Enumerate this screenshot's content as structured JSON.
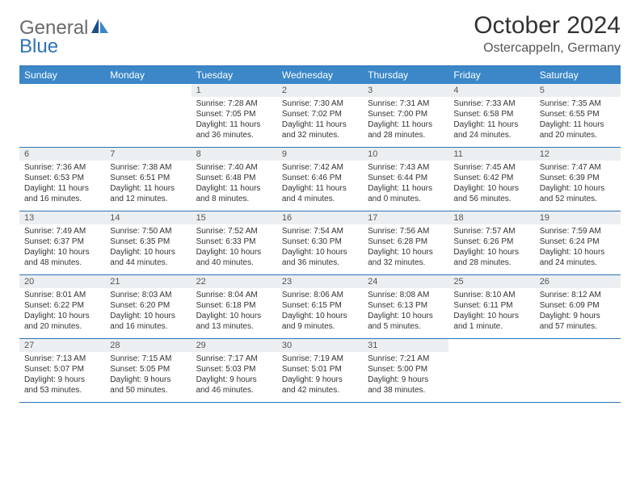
{
  "brand": {
    "part1": "General",
    "part2": "Blue"
  },
  "title": "October 2024",
  "location": "Ostercappeln, Germany",
  "colors": {
    "header_bg": "#3b87c8",
    "border": "#2f74b5",
    "numbar_bg": "#eceff1",
    "text": "#333333"
  },
  "day_names": [
    "Sunday",
    "Monday",
    "Tuesday",
    "Wednesday",
    "Thursday",
    "Friday",
    "Saturday"
  ],
  "weeks": [
    [
      {
        "empty": true
      },
      {
        "empty": true
      },
      {
        "num": "1",
        "sunrise": "Sunrise: 7:28 AM",
        "sunset": "Sunset: 7:05 PM",
        "daylight": "Daylight: 11 hours and 36 minutes."
      },
      {
        "num": "2",
        "sunrise": "Sunrise: 7:30 AM",
        "sunset": "Sunset: 7:02 PM",
        "daylight": "Daylight: 11 hours and 32 minutes."
      },
      {
        "num": "3",
        "sunrise": "Sunrise: 7:31 AM",
        "sunset": "Sunset: 7:00 PM",
        "daylight": "Daylight: 11 hours and 28 minutes."
      },
      {
        "num": "4",
        "sunrise": "Sunrise: 7:33 AM",
        "sunset": "Sunset: 6:58 PM",
        "daylight": "Daylight: 11 hours and 24 minutes."
      },
      {
        "num": "5",
        "sunrise": "Sunrise: 7:35 AM",
        "sunset": "Sunset: 6:55 PM",
        "daylight": "Daylight: 11 hours and 20 minutes."
      }
    ],
    [
      {
        "num": "6",
        "sunrise": "Sunrise: 7:36 AM",
        "sunset": "Sunset: 6:53 PM",
        "daylight": "Daylight: 11 hours and 16 minutes."
      },
      {
        "num": "7",
        "sunrise": "Sunrise: 7:38 AM",
        "sunset": "Sunset: 6:51 PM",
        "daylight": "Daylight: 11 hours and 12 minutes."
      },
      {
        "num": "8",
        "sunrise": "Sunrise: 7:40 AM",
        "sunset": "Sunset: 6:48 PM",
        "daylight": "Daylight: 11 hours and 8 minutes."
      },
      {
        "num": "9",
        "sunrise": "Sunrise: 7:42 AM",
        "sunset": "Sunset: 6:46 PM",
        "daylight": "Daylight: 11 hours and 4 minutes."
      },
      {
        "num": "10",
        "sunrise": "Sunrise: 7:43 AM",
        "sunset": "Sunset: 6:44 PM",
        "daylight": "Daylight: 11 hours and 0 minutes."
      },
      {
        "num": "11",
        "sunrise": "Sunrise: 7:45 AM",
        "sunset": "Sunset: 6:42 PM",
        "daylight": "Daylight: 10 hours and 56 minutes."
      },
      {
        "num": "12",
        "sunrise": "Sunrise: 7:47 AM",
        "sunset": "Sunset: 6:39 PM",
        "daylight": "Daylight: 10 hours and 52 minutes."
      }
    ],
    [
      {
        "num": "13",
        "sunrise": "Sunrise: 7:49 AM",
        "sunset": "Sunset: 6:37 PM",
        "daylight": "Daylight: 10 hours and 48 minutes."
      },
      {
        "num": "14",
        "sunrise": "Sunrise: 7:50 AM",
        "sunset": "Sunset: 6:35 PM",
        "daylight": "Daylight: 10 hours and 44 minutes."
      },
      {
        "num": "15",
        "sunrise": "Sunrise: 7:52 AM",
        "sunset": "Sunset: 6:33 PM",
        "daylight": "Daylight: 10 hours and 40 minutes."
      },
      {
        "num": "16",
        "sunrise": "Sunrise: 7:54 AM",
        "sunset": "Sunset: 6:30 PM",
        "daylight": "Daylight: 10 hours and 36 minutes."
      },
      {
        "num": "17",
        "sunrise": "Sunrise: 7:56 AM",
        "sunset": "Sunset: 6:28 PM",
        "daylight": "Daylight: 10 hours and 32 minutes."
      },
      {
        "num": "18",
        "sunrise": "Sunrise: 7:57 AM",
        "sunset": "Sunset: 6:26 PM",
        "daylight": "Daylight: 10 hours and 28 minutes."
      },
      {
        "num": "19",
        "sunrise": "Sunrise: 7:59 AM",
        "sunset": "Sunset: 6:24 PM",
        "daylight": "Daylight: 10 hours and 24 minutes."
      }
    ],
    [
      {
        "num": "20",
        "sunrise": "Sunrise: 8:01 AM",
        "sunset": "Sunset: 6:22 PM",
        "daylight": "Daylight: 10 hours and 20 minutes."
      },
      {
        "num": "21",
        "sunrise": "Sunrise: 8:03 AM",
        "sunset": "Sunset: 6:20 PM",
        "daylight": "Daylight: 10 hours and 16 minutes."
      },
      {
        "num": "22",
        "sunrise": "Sunrise: 8:04 AM",
        "sunset": "Sunset: 6:18 PM",
        "daylight": "Daylight: 10 hours and 13 minutes."
      },
      {
        "num": "23",
        "sunrise": "Sunrise: 8:06 AM",
        "sunset": "Sunset: 6:15 PM",
        "daylight": "Daylight: 10 hours and 9 minutes."
      },
      {
        "num": "24",
        "sunrise": "Sunrise: 8:08 AM",
        "sunset": "Sunset: 6:13 PM",
        "daylight": "Daylight: 10 hours and 5 minutes."
      },
      {
        "num": "25",
        "sunrise": "Sunrise: 8:10 AM",
        "sunset": "Sunset: 6:11 PM",
        "daylight": "Daylight: 10 hours and 1 minute."
      },
      {
        "num": "26",
        "sunrise": "Sunrise: 8:12 AM",
        "sunset": "Sunset: 6:09 PM",
        "daylight": "Daylight: 9 hours and 57 minutes."
      }
    ],
    [
      {
        "num": "27",
        "sunrise": "Sunrise: 7:13 AM",
        "sunset": "Sunset: 5:07 PM",
        "daylight": "Daylight: 9 hours and 53 minutes."
      },
      {
        "num": "28",
        "sunrise": "Sunrise: 7:15 AM",
        "sunset": "Sunset: 5:05 PM",
        "daylight": "Daylight: 9 hours and 50 minutes."
      },
      {
        "num": "29",
        "sunrise": "Sunrise: 7:17 AM",
        "sunset": "Sunset: 5:03 PM",
        "daylight": "Daylight: 9 hours and 46 minutes."
      },
      {
        "num": "30",
        "sunrise": "Sunrise: 7:19 AM",
        "sunset": "Sunset: 5:01 PM",
        "daylight": "Daylight: 9 hours and 42 minutes."
      },
      {
        "num": "31",
        "sunrise": "Sunrise: 7:21 AM",
        "sunset": "Sunset: 5:00 PM",
        "daylight": "Daylight: 9 hours and 38 minutes."
      },
      {
        "empty": true
      },
      {
        "empty": true
      }
    ]
  ]
}
